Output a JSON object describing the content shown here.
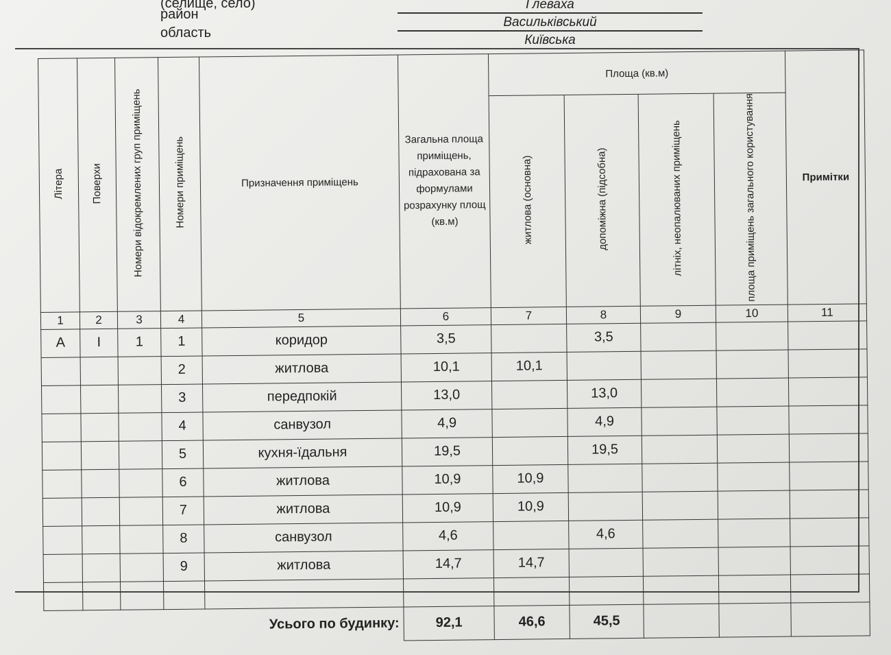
{
  "header": {
    "settlement_label": "(селище, село)",
    "district_label": "район",
    "region_label": "область",
    "settlement": "Глеваха",
    "district": "Васильківський",
    "region": "Київська"
  },
  "table": {
    "columns": [
      "Літера",
      "Поверхи",
      "Номери відокремлених груп приміщень",
      "Номери приміщень",
      "Призначення приміщень",
      "Загальна площа приміщень, підрахована за формулами розрахунку площ (кв.м)",
      "житлова (основна)",
      "допоміжна (підсобна)",
      "літніх, неопалюваних приміщень",
      "площа приміщень загального користування",
      "Примітки"
    ],
    "area_group": "Площа (кв.м)",
    "indices": [
      "1",
      "2",
      "3",
      "4",
      "5",
      "6",
      "7",
      "8",
      "9",
      "10",
      "11"
    ],
    "rows": [
      [
        "А",
        "І",
        "1",
        "1",
        "коридор",
        "3,5",
        "",
        "3,5",
        "",
        "",
        ""
      ],
      [
        "",
        "",
        "",
        "2",
        "житлова",
        "10,1",
        "10,1",
        "",
        "",
        "",
        ""
      ],
      [
        "",
        "",
        "",
        "3",
        "передпокій",
        "13,0",
        "",
        "13,0",
        "",
        "",
        ""
      ],
      [
        "",
        "",
        "",
        "4",
        "санвузол",
        "4,9",
        "",
        "4,9",
        "",
        "",
        ""
      ],
      [
        "",
        "",
        "",
        "5",
        "кухня-їдальня",
        "19,5",
        "",
        "19,5",
        "",
        "",
        ""
      ],
      [
        "",
        "",
        "",
        "6",
        "житлова",
        "10,9",
        "10,9",
        "",
        "",
        "",
        ""
      ],
      [
        "",
        "",
        "",
        "7",
        "житлова",
        "10,9",
        "10,9",
        "",
        "",
        "",
        ""
      ],
      [
        "",
        "",
        "",
        "8",
        "санвузол",
        "4,6",
        "",
        "4,6",
        "",
        "",
        ""
      ],
      [
        "",
        "",
        "",
        "9",
        "житлова",
        "14,7",
        "14,7",
        "",
        "",
        "",
        ""
      ],
      [
        "",
        "",
        "",
        "",
        "",
        "",
        "",
        "",
        "",
        "",
        ""
      ]
    ],
    "total": {
      "label": "Усього по будинку:",
      "total_area": "92,1",
      "living": "46,6",
      "auxiliary": "45,5"
    }
  }
}
